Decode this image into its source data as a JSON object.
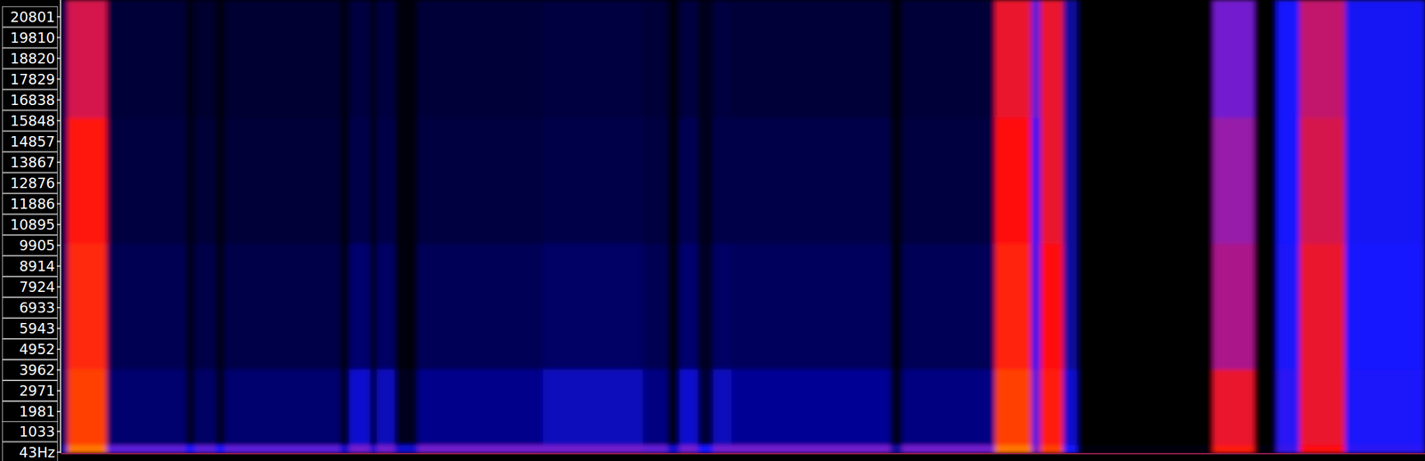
{
  "chart_data": {
    "type": "spectrogram",
    "tick_labels": "y",
    "ylim": [
      0,
      21600
    ],
    "yticks": [
      {
        "value": 43,
        "label": "43Hz"
      },
      1033,
      1981,
      2971,
      3962,
      4952,
      5943,
      6933,
      7924,
      8914,
      9905,
      10895,
      11886,
      12876,
      13867,
      14857,
      15848,
      16838,
      17829,
      18820,
      19810,
      20801
    ],
    "xlim": [
      0,
      1500
    ],
    "x_bins": [
      0,
      7,
      50,
      137,
      147,
      170,
      180,
      307,
      317,
      340,
      347,
      367,
      392,
      530,
      640,
      667,
      680,
      700,
      717,
      737,
      912,
      925,
      1027,
      1067,
      1077,
      1102,
      1117,
      1267,
      1312,
      1337,
      1362,
      1412,
      1500
    ],
    "y_bins": [
      0,
      400,
      4000,
      10000,
      16000,
      21600
    ],
    "zlim": [
      0,
      100
    ],
    "cells": [
      [
        40,
        88,
        55,
        45,
        55,
        45,
        55,
        40,
        58,
        40,
        58,
        40,
        58,
        58,
        56,
        40,
        58,
        45,
        58,
        58,
        35,
        58,
        88,
        60,
        80,
        45,
        5,
        74,
        5,
        50,
        72,
        48
      ],
      [
        30,
        80,
        30,
        12,
        28,
        10,
        30,
        8,
        40,
        8,
        38,
        10,
        33,
        38,
        32,
        8,
        40,
        18,
        38,
        34,
        8,
        32,
        80,
        55,
        74,
        40,
        2,
        70,
        2,
        48,
        70,
        46
      ],
      [
        28,
        76,
        24,
        10,
        22,
        8,
        22,
        6,
        30,
        6,
        28,
        6,
        25,
        28,
        24,
        6,
        30,
        12,
        28,
        26,
        6,
        25,
        75,
        50,
        72,
        35,
        2,
        64,
        2,
        46,
        70,
        45
      ],
      [
        25,
        73,
        20,
        8,
        18,
        6,
        18,
        5,
        22,
        5,
        22,
        5,
        20,
        22,
        20,
        5,
        24,
        10,
        22,
        22,
        5,
        20,
        72,
        48,
        70,
        35,
        2,
        62,
        2,
        45,
        68,
        44
      ],
      [
        25,
        68,
        18,
        8,
        16,
        6,
        17,
        5,
        20,
        5,
        20,
        5,
        18,
        20,
        18,
        5,
        20,
        10,
        20,
        18,
        5,
        18,
        70,
        55,
        70,
        35,
        2,
        58,
        2,
        45,
        66,
        44
      ]
    ]
  }
}
